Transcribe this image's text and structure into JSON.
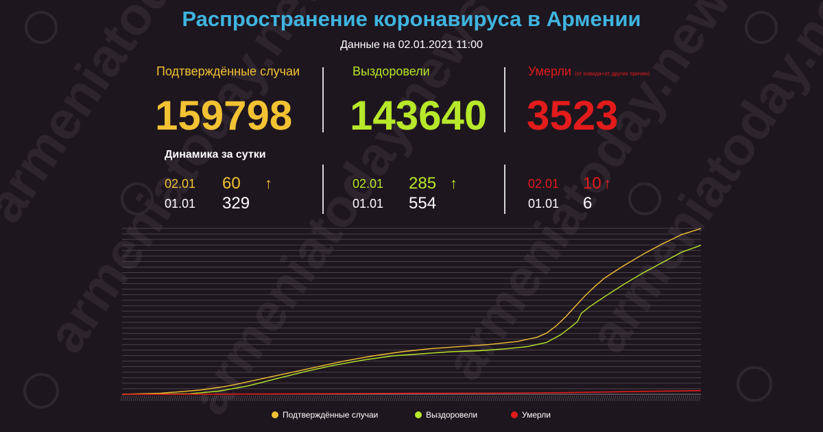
{
  "title": "Распространение коронавируса в Армении",
  "subtitle": "Данные на 02.01.2021 11:00",
  "colors": {
    "confirmed": "#f2c233",
    "recovered": "#b7e82a",
    "deaths": "#e21b1b",
    "title": "#3fb4e0",
    "background": "#1e161e"
  },
  "stats": {
    "confirmed": {
      "label": "Подтверждённые случаи",
      "value": "159798"
    },
    "recovered": {
      "label": "Выздоровели",
      "value": "143640"
    },
    "deaths": {
      "label": "Умерли",
      "note": "(от ковида+от других причин)",
      "value": "3523"
    }
  },
  "dynamics": {
    "title": "Динамика за сутки",
    "confirmed": {
      "date_today": "02.01",
      "value_today": "60",
      "date_prev": "01.01",
      "value_prev": "329",
      "trend": "up"
    },
    "recovered": {
      "date_today": "02.01",
      "value_today": "285",
      "date_prev": "01.01",
      "value_prev": "554",
      "trend": "up"
    },
    "deaths": {
      "date_today": "02.01",
      "value_today": "10",
      "date_prev": "01.01",
      "value_prev": "6",
      "trend": "up"
    }
  },
  "arrow_glyph": "↑",
  "watermark_text": "armeniatoday.news",
  "chart_data": {
    "type": "line",
    "x_range": [
      0,
      300
    ],
    "ylim": [
      0,
      160000
    ],
    "grid": true,
    "legend": "bottom",
    "series": [
      {
        "name": "Подтверждённые случаи",
        "color": "#f2c233",
        "points": [
          [
            0,
            0
          ],
          [
            20,
            1000
          ],
          [
            40,
            4000
          ],
          [
            55,
            8000
          ],
          [
            70,
            14000
          ],
          [
            85,
            20000
          ],
          [
            100,
            26000
          ],
          [
            115,
            32000
          ],
          [
            130,
            37000
          ],
          [
            145,
            41000
          ],
          [
            160,
            44000
          ],
          [
            175,
            46000
          ],
          [
            190,
            48000
          ],
          [
            205,
            51000
          ],
          [
            215,
            55000
          ],
          [
            220,
            59000
          ],
          [
            225,
            66000
          ],
          [
            230,
            75000
          ],
          [
            235,
            85000
          ],
          [
            240,
            95000
          ],
          [
            245,
            104000
          ],
          [
            250,
            112000
          ],
          [
            260,
            124000
          ],
          [
            270,
            135000
          ],
          [
            280,
            145000
          ],
          [
            290,
            154000
          ],
          [
            300,
            159798
          ]
        ]
      },
      {
        "name": "Выздоровели",
        "color": "#b7e82a",
        "points": [
          [
            0,
            0
          ],
          [
            35,
            500
          ],
          [
            50,
            3000
          ],
          [
            65,
            8000
          ],
          [
            80,
            15000
          ],
          [
            95,
            22000
          ],
          [
            110,
            28000
          ],
          [
            125,
            33000
          ],
          [
            140,
            37000
          ],
          [
            155,
            39000
          ],
          [
            170,
            41000
          ],
          [
            185,
            42000
          ],
          [
            200,
            44000
          ],
          [
            210,
            46000
          ],
          [
            220,
            50000
          ],
          [
            227,
            57000
          ],
          [
            232,
            64000
          ],
          [
            236,
            70000
          ],
          [
            238,
            78000
          ],
          [
            242,
            84000
          ],
          [
            250,
            94000
          ],
          [
            260,
            106000
          ],
          [
            270,
            117000
          ],
          [
            280,
            127000
          ],
          [
            290,
            137000
          ],
          [
            300,
            143640
          ]
        ]
      },
      {
        "name": "Умерли",
        "color": "#e21b1b",
        "points": [
          [
            0,
            0
          ],
          [
            50,
            100
          ],
          [
            100,
            500
          ],
          [
            150,
            900
          ],
          [
            200,
            1100
          ],
          [
            230,
            1600
          ],
          [
            250,
            2200
          ],
          [
            270,
            2800
          ],
          [
            300,
            3523
          ]
        ]
      }
    ]
  }
}
